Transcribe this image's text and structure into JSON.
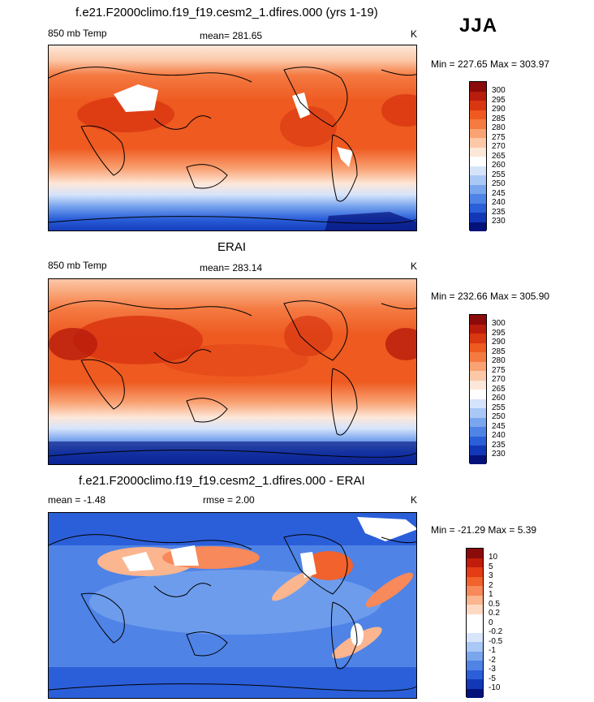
{
  "season": "JJA",
  "panels": [
    {
      "id": "model",
      "title": "f.e21.F2000climo.f19_f19.cesm2_1.dfires.000 (yrs 1-19)",
      "left_label": "850 mb Temp",
      "center_label": "mean= 281.65",
      "units": "K",
      "minmax": "Min = 227.65 Max = 303.97",
      "colorbar": {
        "labels": [
          "300",
          "295",
          "290",
          "285",
          "280",
          "275",
          "270",
          "265",
          "260",
          "255",
          "250",
          "245",
          "240",
          "235",
          "230"
        ],
        "colors": [
          "#8b0a0a",
          "#b81c0c",
          "#d93612",
          "#ee5a20",
          "#f47a42",
          "#f9a273",
          "#fcc8a8",
          "#fde7d8",
          "#ffffff",
          "#d6e4fb",
          "#aac8f5",
          "#7aa6ee",
          "#4f83e6",
          "#2b5fd9",
          "#1238b8",
          "#04127a"
        ]
      }
    },
    {
      "id": "obs",
      "title": "ERAI",
      "left_label": "850 mb Temp",
      "center_label": "mean= 283.14",
      "units": "K",
      "minmax": "Min = 232.66 Max = 305.90",
      "colorbar": {
        "labels": [
          "300",
          "295",
          "290",
          "285",
          "280",
          "275",
          "270",
          "265",
          "260",
          "255",
          "250",
          "245",
          "240",
          "235",
          "230"
        ],
        "colors": [
          "#8b0a0a",
          "#b81c0c",
          "#d93612",
          "#ee5a20",
          "#f47a42",
          "#f9a273",
          "#fcc8a8",
          "#fde7d8",
          "#ffffff",
          "#d6e4fb",
          "#aac8f5",
          "#7aa6ee",
          "#4f83e6",
          "#2b5fd9",
          "#1238b8",
          "#04127a"
        ]
      }
    },
    {
      "id": "diff",
      "title": "f.e21.F2000climo.f19_f19.cesm2_1.dfires.000 - ERAI",
      "left_label": "mean =  -1.48",
      "center_label": "rmse =   2.00",
      "units": "K",
      "minmax": "Min = -21.29 Max =   5.39",
      "colorbar": {
        "labels": [
          "10",
          "5",
          "3",
          "2",
          "1",
          "0.5",
          "0.2",
          "0",
          "-0.2",
          "-0.5",
          "-1",
          "-2",
          "-3",
          "-5",
          "-10"
        ],
        "colors": [
          "#8b0a0a",
          "#c11c0c",
          "#e43c14",
          "#f2622c",
          "#f7895a",
          "#fbb58f",
          "#fdd9c2",
          "#ffffff",
          "#ffffff",
          "#d8e5fb",
          "#aac8f5",
          "#7aa6ee",
          "#4f83e6",
          "#2b5fd9",
          "#1238b8",
          "#04127a"
        ]
      }
    }
  ]
}
